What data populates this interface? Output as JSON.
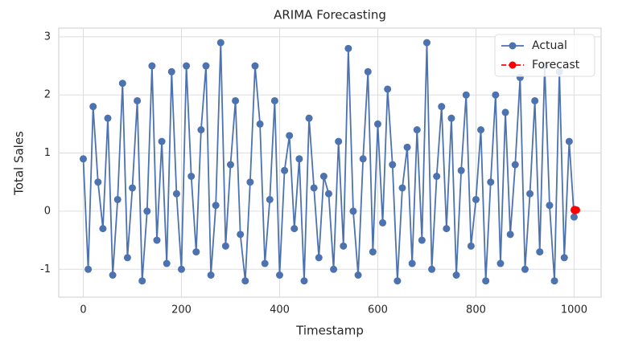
{
  "chart_data": {
    "type": "line",
    "title": "ARIMA Forecasting",
    "x_label": "Timestamp",
    "y_label": "Total Sales",
    "xlim": [
      -50,
      1055
    ],
    "ylim": [
      -1.48,
      3.15
    ],
    "xticks": [
      0,
      200,
      400,
      600,
      800,
      1000
    ],
    "yticks": [
      -1,
      0,
      1,
      2,
      3
    ],
    "grid": true,
    "legend": "upper right",
    "series": [
      {
        "name": "Actual",
        "color": "#4c72b0",
        "dash": false,
        "x": [
          0,
          10,
          20,
          30,
          40,
          50,
          60,
          70,
          80,
          90,
          100,
          110,
          120,
          130,
          140,
          150,
          160,
          170,
          180,
          190,
          200,
          210,
          220,
          230,
          240,
          250,
          260,
          270,
          280,
          290,
          300,
          310,
          320,
          330,
          340,
          350,
          360,
          370,
          380,
          390,
          400,
          410,
          420,
          430,
          440,
          450,
          460,
          470,
          480,
          490,
          500,
          510,
          520,
          530,
          540,
          550,
          560,
          570,
          580,
          590,
          600,
          610,
          620,
          630,
          640,
          650,
          660,
          670,
          680,
          690,
          700,
          710,
          720,
          730,
          740,
          750,
          760,
          770,
          780,
          790,
          800,
          810,
          820,
          830,
          840,
          850,
          860,
          870,
          880,
          890,
          900,
          910,
          920,
          930,
          940,
          950,
          960,
          970,
          980,
          990,
          1000
        ],
        "values": [
          0.9,
          -1.0,
          1.8,
          0.5,
          -0.3,
          1.6,
          -1.1,
          0.2,
          2.2,
          -0.8,
          0.4,
          1.9,
          -1.2,
          0.0,
          2.5,
          -0.5,
          1.2,
          -0.9,
          2.4,
          0.3,
          -1.0,
          2.5,
          0.6,
          -0.7,
          1.4,
          2.5,
          -1.1,
          0.1,
          2.9,
          -0.6,
          0.8,
          1.9,
          -0.4,
          -1.2,
          0.5,
          2.5,
          1.5,
          -0.9,
          0.2,
          1.9,
          -1.1,
          0.7,
          1.3,
          -0.3,
          0.9,
          -1.2,
          1.6,
          0.4,
          -0.8,
          0.6,
          0.3,
          -1.0,
          1.2,
          -0.6,
          2.8,
          0.0,
          -1.1,
          0.9,
          2.4,
          -0.7,
          1.5,
          -0.2,
          2.1,
          0.8,
          -1.2,
          0.4,
          1.1,
          -0.9,
          1.4,
          -0.5,
          2.9,
          -1.0,
          0.6,
          1.8,
          -0.3,
          1.6,
          -1.1,
          0.7,
          2.0,
          -0.6,
          0.2,
          1.4,
          -1.2,
          0.5,
          2.0,
          -0.9,
          1.7,
          -0.4,
          0.8,
          2.3,
          -1.0,
          0.3,
          1.9,
          -0.7,
          2.5,
          0.1,
          -1.2,
          2.4,
          -0.8,
          1.2,
          -0.1
        ]
      },
      {
        "name": "Forecast",
        "color": "#ff0000",
        "dash": true,
        "x": [
          1000,
          1001,
          1002,
          1003,
          1004,
          1005
        ],
        "values": [
          0.02,
          0.03,
          0.01,
          0.02,
          0.02,
          0.02
        ]
      }
    ]
  }
}
